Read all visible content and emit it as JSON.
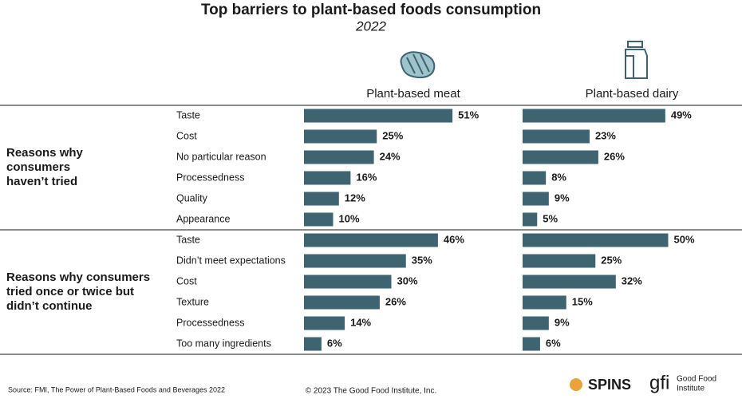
{
  "chart_data": {
    "type": "bar",
    "orientation": "horizontal",
    "title": "Top barriers to plant-based foods consumption",
    "subtitle": "2022",
    "groups": [
      {
        "name": "Reasons why consumers haven’t tried",
        "categories": [
          "Taste",
          "Cost",
          "No particular reason",
          "Processedness",
          "Quality",
          "Appearance"
        ]
      },
      {
        "name": "Reasons why consumers tried once or twice but didn’t continue",
        "categories": [
          "Taste",
          "Didn’t meet expectations",
          "Cost",
          "Texture",
          "Processedness",
          "Too many ingredients"
        ]
      }
    ],
    "series": [
      {
        "name": "Plant-based meat",
        "color": "#3d6470",
        "values": [
          [
            51,
            25,
            24,
            16,
            12,
            10
          ],
          [
            46,
            35,
            30,
            26,
            14,
            6
          ]
        ],
        "value_labels": [
          [
            "51%",
            "25%",
            "24%",
            "16%",
            "12%",
            "10%"
          ],
          [
            "46%",
            "35%",
            "30%",
            "26%",
            "14%",
            "6%"
          ]
        ]
      },
      {
        "name": "Plant-based dairy",
        "color": "#3d6470",
        "values": [
          [
            49,
            23,
            26,
            8,
            9,
            5
          ],
          [
            50,
            25,
            32,
            15,
            9,
            6
          ]
        ],
        "value_labels": [
          [
            "49%",
            "23%",
            "26%",
            "8%",
            "9%",
            "5%"
          ],
          [
            "50%",
            "25%",
            "32%",
            "15%",
            "9%",
            "6%"
          ]
        ]
      }
    ]
  },
  "footer": {
    "source": "Source: FMI, The Power of Plant-Based Foods and Beverages 2022",
    "copyright": "© 2023 The Good Food Institute, Inc.",
    "logos": [
      "SPINS",
      "gfi",
      "Good Food",
      "Institute"
    ]
  }
}
